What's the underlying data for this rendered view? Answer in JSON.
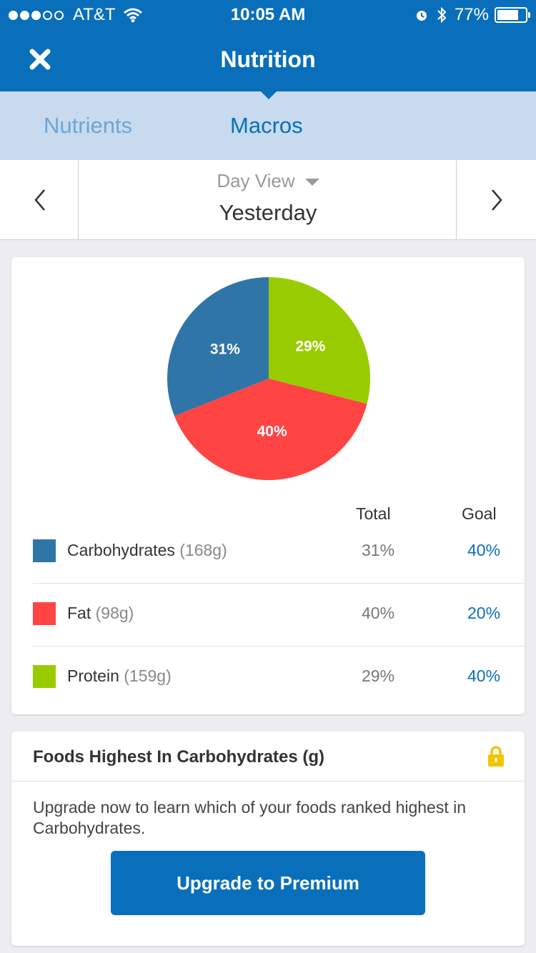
{
  "status_bar": {
    "carrier": "AT&T",
    "time": "10:05 AM",
    "battery": "77%",
    "signal_bars_filled": 3,
    "signal_bars_total": 5,
    "battery_level": 0.77
  },
  "nav": {
    "title": "Nutrition",
    "close_icon": "close-icon"
  },
  "tabs": [
    {
      "label": "Nutrients",
      "active": false
    },
    {
      "label": "Macros",
      "active": true
    }
  ],
  "day_bar": {
    "view_label": "Day View",
    "date_label": "Yesterday"
  },
  "chart_data": {
    "type": "pie",
    "slices": [
      {
        "name": "Protein",
        "value": 29,
        "label": "29%",
        "color": "#99cc00"
      },
      {
        "name": "Fat",
        "value": 40,
        "label": "40%",
        "color": "#ff4444"
      },
      {
        "name": "Carbohydrates",
        "value": 31,
        "label": "31%",
        "color": "#3075a8"
      }
    ]
  },
  "table": {
    "total_header": "Total",
    "goal_header": "Goal",
    "rows": [
      {
        "name": "Carbohydrates",
        "grams": "(168g)",
        "total": "31%",
        "goal": "40%",
        "color": "#3075a8"
      },
      {
        "name": "Fat",
        "grams": "(98g)",
        "total": "40%",
        "goal": "20%",
        "color": "#ff4444"
      },
      {
        "name": "Protein",
        "grams": "(159g)",
        "total": "29%",
        "goal": "40%",
        "color": "#99cc00"
      }
    ]
  },
  "foods": {
    "title": "Foods Highest In Carbohydrates (g)",
    "lock_icon": "lock-icon",
    "message": "Upgrade now to learn which of your foods ranked highest in Carbohydrates.",
    "button_label": "Upgrade to Premium"
  },
  "colors": {
    "brand": "#0a6fba",
    "tab_bg": "#c7daee",
    "lock": "#f5c400"
  }
}
